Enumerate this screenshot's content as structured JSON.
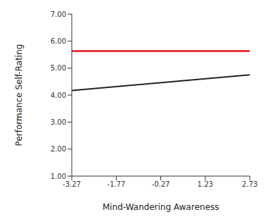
{
  "chart_data": {
    "type": "line",
    "x_label": "Mind-Wandering Awareness",
    "y_label": "Performance Self-Rating",
    "x": [
      -3.27,
      2.73
    ],
    "series": [
      {
        "color": "#e8101a",
        "values": [
          5.63,
          5.63
        ]
      },
      {
        "color": "#222222",
        "values": [
          4.17,
          4.75
        ]
      }
    ],
    "xlim": [
      -3.27,
      2.73
    ],
    "xticks": [
      -3.27,
      -1.77,
      -0.27,
      1.23,
      2.73
    ],
    "ylim": [
      1,
      7
    ],
    "yticks": [
      {
        "value": 1,
        "label": "1.00"
      },
      {
        "value": 2,
        "label": "2.00"
      },
      {
        "value": 3,
        "label": "3.00"
      },
      {
        "value": 4,
        "label": "4.00"
      },
      {
        "value": 5,
        "label": "5.00"
      },
      {
        "value": 6,
        "label": "6.00"
      },
      {
        "value": 7,
        "label": "7.00"
      }
    ],
    "grid": false
  }
}
